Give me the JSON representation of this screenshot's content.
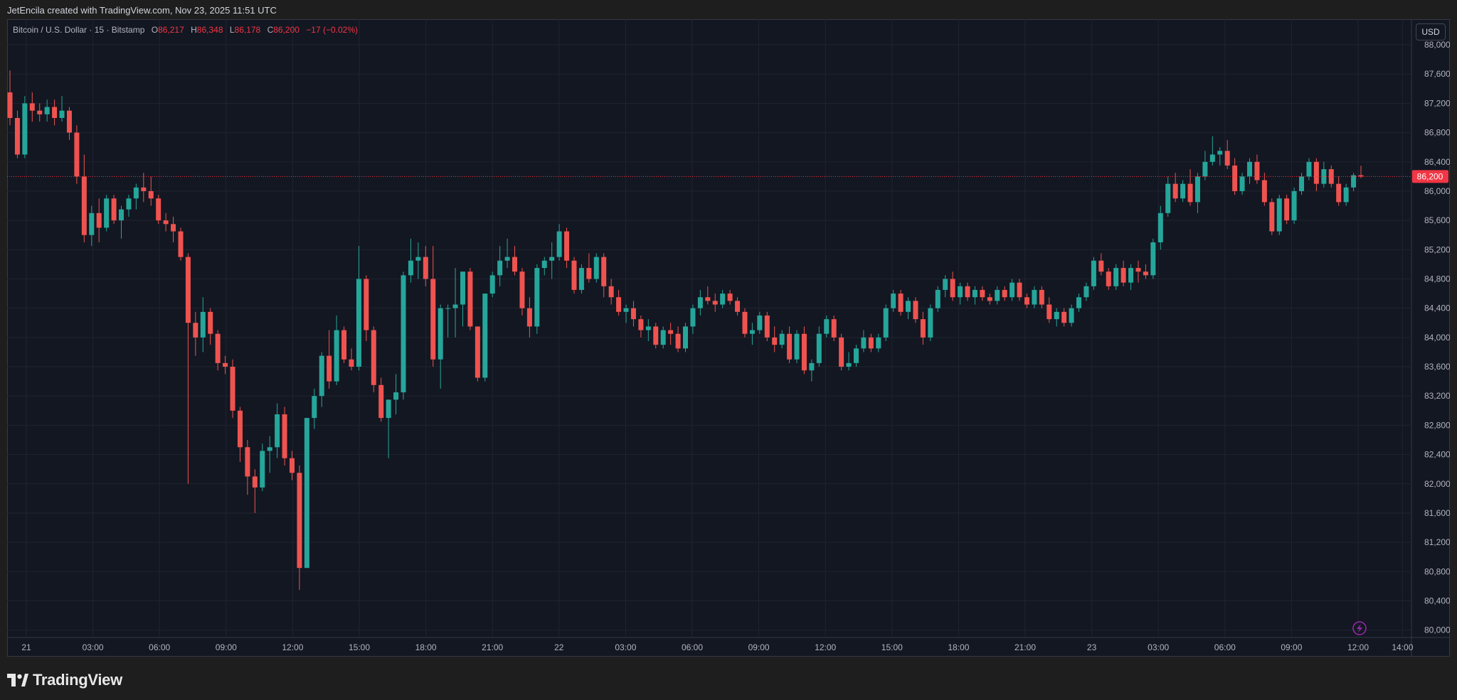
{
  "header": {
    "credit": "JetEncila created with TradingView.com, Nov 23, 2025 11:51 UTC"
  },
  "legend": {
    "title": "Bitcoin / U.S. Dollar · 15 · Bitstamp",
    "o_label": "O",
    "o_value": "86,217",
    "h_label": "H",
    "h_value": "86,348",
    "l_label": "L",
    "l_value": "86,178",
    "c_label": "C",
    "c_value": "86,200",
    "change": "−17 (−0.02%)"
  },
  "currency_button": "USD",
  "brand": "TradingView",
  "colors": {
    "up": "#26a69a",
    "down": "#ef5350",
    "background": "#131722",
    "grid": "#1f2430",
    "last_price": "#f23645"
  },
  "chart_data": {
    "type": "candlestick",
    "symbol": "Bitcoin / U.S. Dollar",
    "interval": "15",
    "exchange": "Bitstamp",
    "ylim": [
      79900,
      88350
    ],
    "y_ticks": [
      80000,
      80400,
      80800,
      81200,
      81600,
      82000,
      82400,
      82800,
      83200,
      83600,
      84000,
      84400,
      84800,
      85200,
      85600,
      86000,
      86400,
      86800,
      87200,
      87600,
      88000
    ],
    "x_ticks": [
      {
        "label": "21",
        "hour": 0
      },
      {
        "label": "03:00",
        "hour": 3
      },
      {
        "label": "06:00",
        "hour": 6
      },
      {
        "label": "09:00",
        "hour": 9
      },
      {
        "label": "12:00",
        "hour": 12
      },
      {
        "label": "15:00",
        "hour": 15
      },
      {
        "label": "18:00",
        "hour": 18
      },
      {
        "label": "21:00",
        "hour": 21
      },
      {
        "label": "22",
        "hour": 24
      },
      {
        "label": "03:00",
        "hour": 27
      },
      {
        "label": "06:00",
        "hour": 30
      },
      {
        "label": "09:00",
        "hour": 33
      },
      {
        "label": "12:00",
        "hour": 36
      },
      {
        "label": "15:00",
        "hour": 39
      },
      {
        "label": "18:00",
        "hour": 42
      },
      {
        "label": "21:00",
        "hour": 45
      },
      {
        "label": "23",
        "hour": 48
      },
      {
        "label": "03:00",
        "hour": 51
      },
      {
        "label": "06:00",
        "hour": 54
      },
      {
        "label": "09:00",
        "hour": 57
      },
      {
        "label": "12:00",
        "hour": 60
      },
      {
        "label": "14:00",
        "hour": 62
      }
    ],
    "last_price": 86200,
    "last_price_label": "86,200",
    "candles": [
      [
        87350,
        87650,
        86900,
        87000
      ],
      [
        87000,
        87100,
        86450,
        86500
      ],
      [
        86500,
        87300,
        86450,
        87200
      ],
      [
        87200,
        87350,
        86950,
        87100
      ],
      [
        87100,
        87200,
        86950,
        87050
      ],
      [
        87050,
        87250,
        86950,
        87150
      ],
      [
        87150,
        87250,
        86900,
        87000
      ],
      [
        87000,
        87300,
        86950,
        87100
      ],
      [
        87100,
        87150,
        86700,
        86800
      ],
      [
        86800,
        86900,
        86100,
        86200
      ],
      [
        86200,
        86500,
        85300,
        85400
      ],
      [
        85400,
        85800,
        85250,
        85700
      ],
      [
        85700,
        85900,
        85300,
        85500
      ],
      [
        85500,
        85950,
        85450,
        85900
      ],
      [
        85900,
        85950,
        85550,
        85600
      ],
      [
        85600,
        85800,
        85350,
        85750
      ],
      [
        85750,
        85950,
        85650,
        85900
      ],
      [
        85900,
        86100,
        85750,
        86050
      ],
      [
        86050,
        86250,
        85850,
        86000
      ],
      [
        86000,
        86200,
        85800,
        85900
      ],
      [
        85900,
        85950,
        85550,
        85600
      ],
      [
        85600,
        85700,
        85450,
        85550
      ],
      [
        85550,
        85650,
        85300,
        85450
      ],
      [
        85450,
        85500,
        85050,
        85100
      ],
      [
        85100,
        85150,
        82000,
        84200
      ],
      [
        84200,
        84350,
        83750,
        84000
      ],
      [
        84000,
        84550,
        83800,
        84350
      ],
      [
        84350,
        84400,
        83900,
        84050
      ],
      [
        84050,
        84100,
        83550,
        83650
      ],
      [
        83650,
        83750,
        83500,
        83600
      ],
      [
        83600,
        83700,
        82900,
        83000
      ],
      [
        83000,
        83050,
        82300,
        82500
      ],
      [
        82500,
        82600,
        81850,
        82100
      ],
      [
        82100,
        82200,
        81600,
        81950
      ],
      [
        81950,
        82550,
        81900,
        82450
      ],
      [
        82450,
        82650,
        82150,
        82500
      ],
      [
        82500,
        83100,
        82350,
        82950
      ],
      [
        82950,
        83050,
        82250,
        82350
      ],
      [
        82350,
        82450,
        82050,
        82150
      ],
      [
        82150,
        82250,
        80550,
        80850
      ],
      [
        80850,
        82900,
        80850,
        82900
      ],
      [
        82900,
        83300,
        82750,
        83200
      ],
      [
        83200,
        83800,
        83050,
        83750
      ],
      [
        83750,
        84100,
        83300,
        83400
      ],
      [
        83400,
        84300,
        83350,
        84100
      ],
      [
        84100,
        84150,
        83650,
        83700
      ],
      [
        83700,
        83850,
        83550,
        83600
      ],
      [
        83600,
        85250,
        83550,
        84800
      ],
      [
        84800,
        84850,
        83950,
        84100
      ],
      [
        84100,
        84150,
        83250,
        83350
      ],
      [
        83350,
        83450,
        82850,
        82900
      ],
      [
        82900,
        83150,
        82350,
        83150
      ],
      [
        83150,
        83500,
        82950,
        83250
      ],
      [
        83250,
        84900,
        83150,
        84850
      ],
      [
        84850,
        85350,
        84750,
        85050
      ],
      [
        85050,
        85300,
        84800,
        85100
      ],
      [
        85100,
        85250,
        84700,
        84800
      ],
      [
        84800,
        85250,
        83600,
        83700
      ],
      [
        83700,
        84450,
        83300,
        84400
      ],
      [
        84400,
        84450,
        84000,
        84400
      ],
      [
        84400,
        84950,
        84000,
        84450
      ],
      [
        84450,
        84900,
        84150,
        84900
      ],
      [
        84900,
        84950,
        84100,
        84150
      ],
      [
        84150,
        84150,
        83400,
        83450
      ],
      [
        83450,
        84600,
        83400,
        84600
      ],
      [
        84600,
        84900,
        84550,
        84850
      ],
      [
        84850,
        85250,
        84700,
        85050
      ],
      [
        85050,
        85350,
        84950,
        85100
      ],
      [
        85100,
        85250,
        84850,
        84900
      ],
      [
        84900,
        84950,
        84300,
        84400
      ],
      [
        84400,
        84550,
        84000,
        84150
      ],
      [
        84150,
        85000,
        84050,
        84950
      ],
      [
        84950,
        85100,
        84850,
        85050
      ],
      [
        85050,
        85300,
        84800,
        85100
      ],
      [
        85100,
        85550,
        85050,
        85450
      ],
      [
        85450,
        85500,
        84950,
        85050
      ],
      [
        85050,
        85100,
        84600,
        84650
      ],
      [
        84650,
        85000,
        84600,
        84950
      ],
      [
        84950,
        85150,
        84750,
        84800
      ],
      [
        84800,
        85150,
        84750,
        85100
      ],
      [
        85100,
        85150,
        84550,
        84700
      ],
      [
        84700,
        84800,
        84450,
        84550
      ],
      [
        84550,
        84650,
        84300,
        84350
      ],
      [
        84350,
        84450,
        84200,
        84400
      ],
      [
        84400,
        84500,
        84150,
        84250
      ],
      [
        84250,
        84300,
        84000,
        84100
      ],
      [
        84100,
        84250,
        83950,
        84150
      ],
      [
        84150,
        84200,
        83850,
        83900
      ],
      [
        83900,
        84150,
        83850,
        84100
      ],
      [
        84100,
        84200,
        83900,
        84050
      ],
      [
        84050,
        84150,
        83800,
        83850
      ],
      [
        83850,
        84200,
        83800,
        84150
      ],
      [
        84150,
        84450,
        84050,
        84400
      ],
      [
        84400,
        84650,
        84300,
        84550
      ],
      [
        84550,
        84700,
        84450,
        84500
      ],
      [
        84500,
        84600,
        84350,
        84450
      ],
      [
        84450,
        84650,
        84400,
        84600
      ],
      [
        84600,
        84650,
        84450,
        84500
      ],
      [
        84500,
        84550,
        84300,
        84350
      ],
      [
        84350,
        84400,
        84000,
        84050
      ],
      [
        84050,
        84200,
        83900,
        84100
      ],
      [
        84100,
        84350,
        84050,
        84300
      ],
      [
        84300,
        84350,
        83950,
        84000
      ],
      [
        84000,
        84150,
        83800,
        83900
      ],
      [
        83900,
        84100,
        83850,
        84050
      ],
      [
        84050,
        84150,
        83650,
        83700
      ],
      [
        83700,
        84100,
        83650,
        84050
      ],
      [
        84050,
        84150,
        83500,
        83550
      ],
      [
        83550,
        83700,
        83400,
        83650
      ],
      [
        83650,
        84150,
        83600,
        84050
      ],
      [
        84050,
        84300,
        84000,
        84250
      ],
      [
        84250,
        84300,
        83950,
        84000
      ],
      [
        84000,
        84050,
        83550,
        83600
      ],
      [
        83600,
        83800,
        83550,
        83650
      ],
      [
        83650,
        83900,
        83600,
        83850
      ],
      [
        83850,
        84100,
        83800,
        84000
      ],
      [
        84000,
        84050,
        83800,
        83850
      ],
      [
        83850,
        84050,
        83800,
        84000
      ],
      [
        84000,
        84450,
        83950,
        84400
      ],
      [
        84400,
        84650,
        84350,
        84600
      ],
      [
        84600,
        84650,
        84300,
        84350
      ],
      [
        84350,
        84550,
        84250,
        84500
      ],
      [
        84500,
        84550,
        84200,
        84250
      ],
      [
        84250,
        84350,
        83900,
        84000
      ],
      [
        84000,
        84450,
        83950,
        84400
      ],
      [
        84400,
        84700,
        84350,
        84650
      ],
      [
        84650,
        84850,
        84550,
        84800
      ],
      [
        84800,
        84900,
        84500,
        84550
      ],
      [
        84550,
        84750,
        84450,
        84700
      ],
      [
        84700,
        84750,
        84500,
        84550
      ],
      [
        84550,
        84700,
        84450,
        84650
      ],
      [
        84650,
        84700,
        84500,
        84550
      ],
      [
        84550,
        84600,
        84450,
        84500
      ],
      [
        84500,
        84700,
        84450,
        84650
      ],
      [
        84650,
        84700,
        84500,
        84550
      ],
      [
        84550,
        84800,
        84500,
        84750
      ],
      [
        84750,
        84800,
        84500,
        84550
      ],
      [
        84550,
        84600,
        84400,
        84450
      ],
      [
        84450,
        84700,
        84400,
        84650
      ],
      [
        84650,
        84700,
        84400,
        84450
      ],
      [
        84450,
        84550,
        84200,
        84250
      ],
      [
        84250,
        84400,
        84150,
        84350
      ],
      [
        84350,
        84400,
        84150,
        84200
      ],
      [
        84200,
        84450,
        84150,
        84400
      ],
      [
        84400,
        84600,
        84350,
        84550
      ],
      [
        84550,
        84750,
        84500,
        84700
      ],
      [
        84700,
        85100,
        84650,
        85050
      ],
      [
        85050,
        85150,
        84850,
        84900
      ],
      [
        84900,
        84950,
        84650,
        84700
      ],
      [
        84700,
        85000,
        84650,
        84950
      ],
      [
        84950,
        85050,
        84700,
        84750
      ],
      [
        84750,
        85000,
        84650,
        84950
      ],
      [
        84950,
        85050,
        84750,
        84900
      ],
      [
        84900,
        85000,
        84800,
        84850
      ],
      [
        84850,
        85350,
        84800,
        85300
      ],
      [
        85300,
        85800,
        85200,
        85700
      ],
      [
        85700,
        86200,
        85650,
        86100
      ],
      [
        86100,
        86250,
        85850,
        85900
      ],
      [
        85900,
        86150,
        85850,
        86100
      ],
      [
        86100,
        86300,
        85800,
        85850
      ],
      [
        85850,
        86250,
        85700,
        86200
      ],
      [
        86200,
        86550,
        86150,
        86400
      ],
      [
        86400,
        86750,
        86350,
        86500
      ],
      [
        86500,
        86600,
        86350,
        86550
      ],
      [
        86550,
        86700,
        86300,
        86350
      ],
      [
        86350,
        86450,
        85950,
        86000
      ],
      [
        86000,
        86250,
        85950,
        86200
      ],
      [
        86200,
        86450,
        86100,
        86400
      ],
      [
        86400,
        86500,
        86100,
        86150
      ],
      [
        86150,
        86250,
        85800,
        85850
      ],
      [
        85850,
        85900,
        85400,
        85450
      ],
      [
        85450,
        85950,
        85400,
        85900
      ],
      [
        85900,
        85950,
        85550,
        85600
      ],
      [
        85600,
        86050,
        85550,
        86000
      ],
      [
        86000,
        86250,
        85950,
        86200
      ],
      [
        86200,
        86450,
        86150,
        86400
      ],
      [
        86400,
        86450,
        86000,
        86100
      ],
      [
        86100,
        86400,
        86050,
        86300
      ],
      [
        86300,
        86350,
        86050,
        86100
      ],
      [
        86100,
        86200,
        85800,
        85850
      ],
      [
        85850,
        86100,
        85800,
        86050
      ],
      [
        86050,
        86250,
        86000,
        86217
      ],
      [
        86217,
        86348,
        86178,
        86200
      ]
    ]
  }
}
